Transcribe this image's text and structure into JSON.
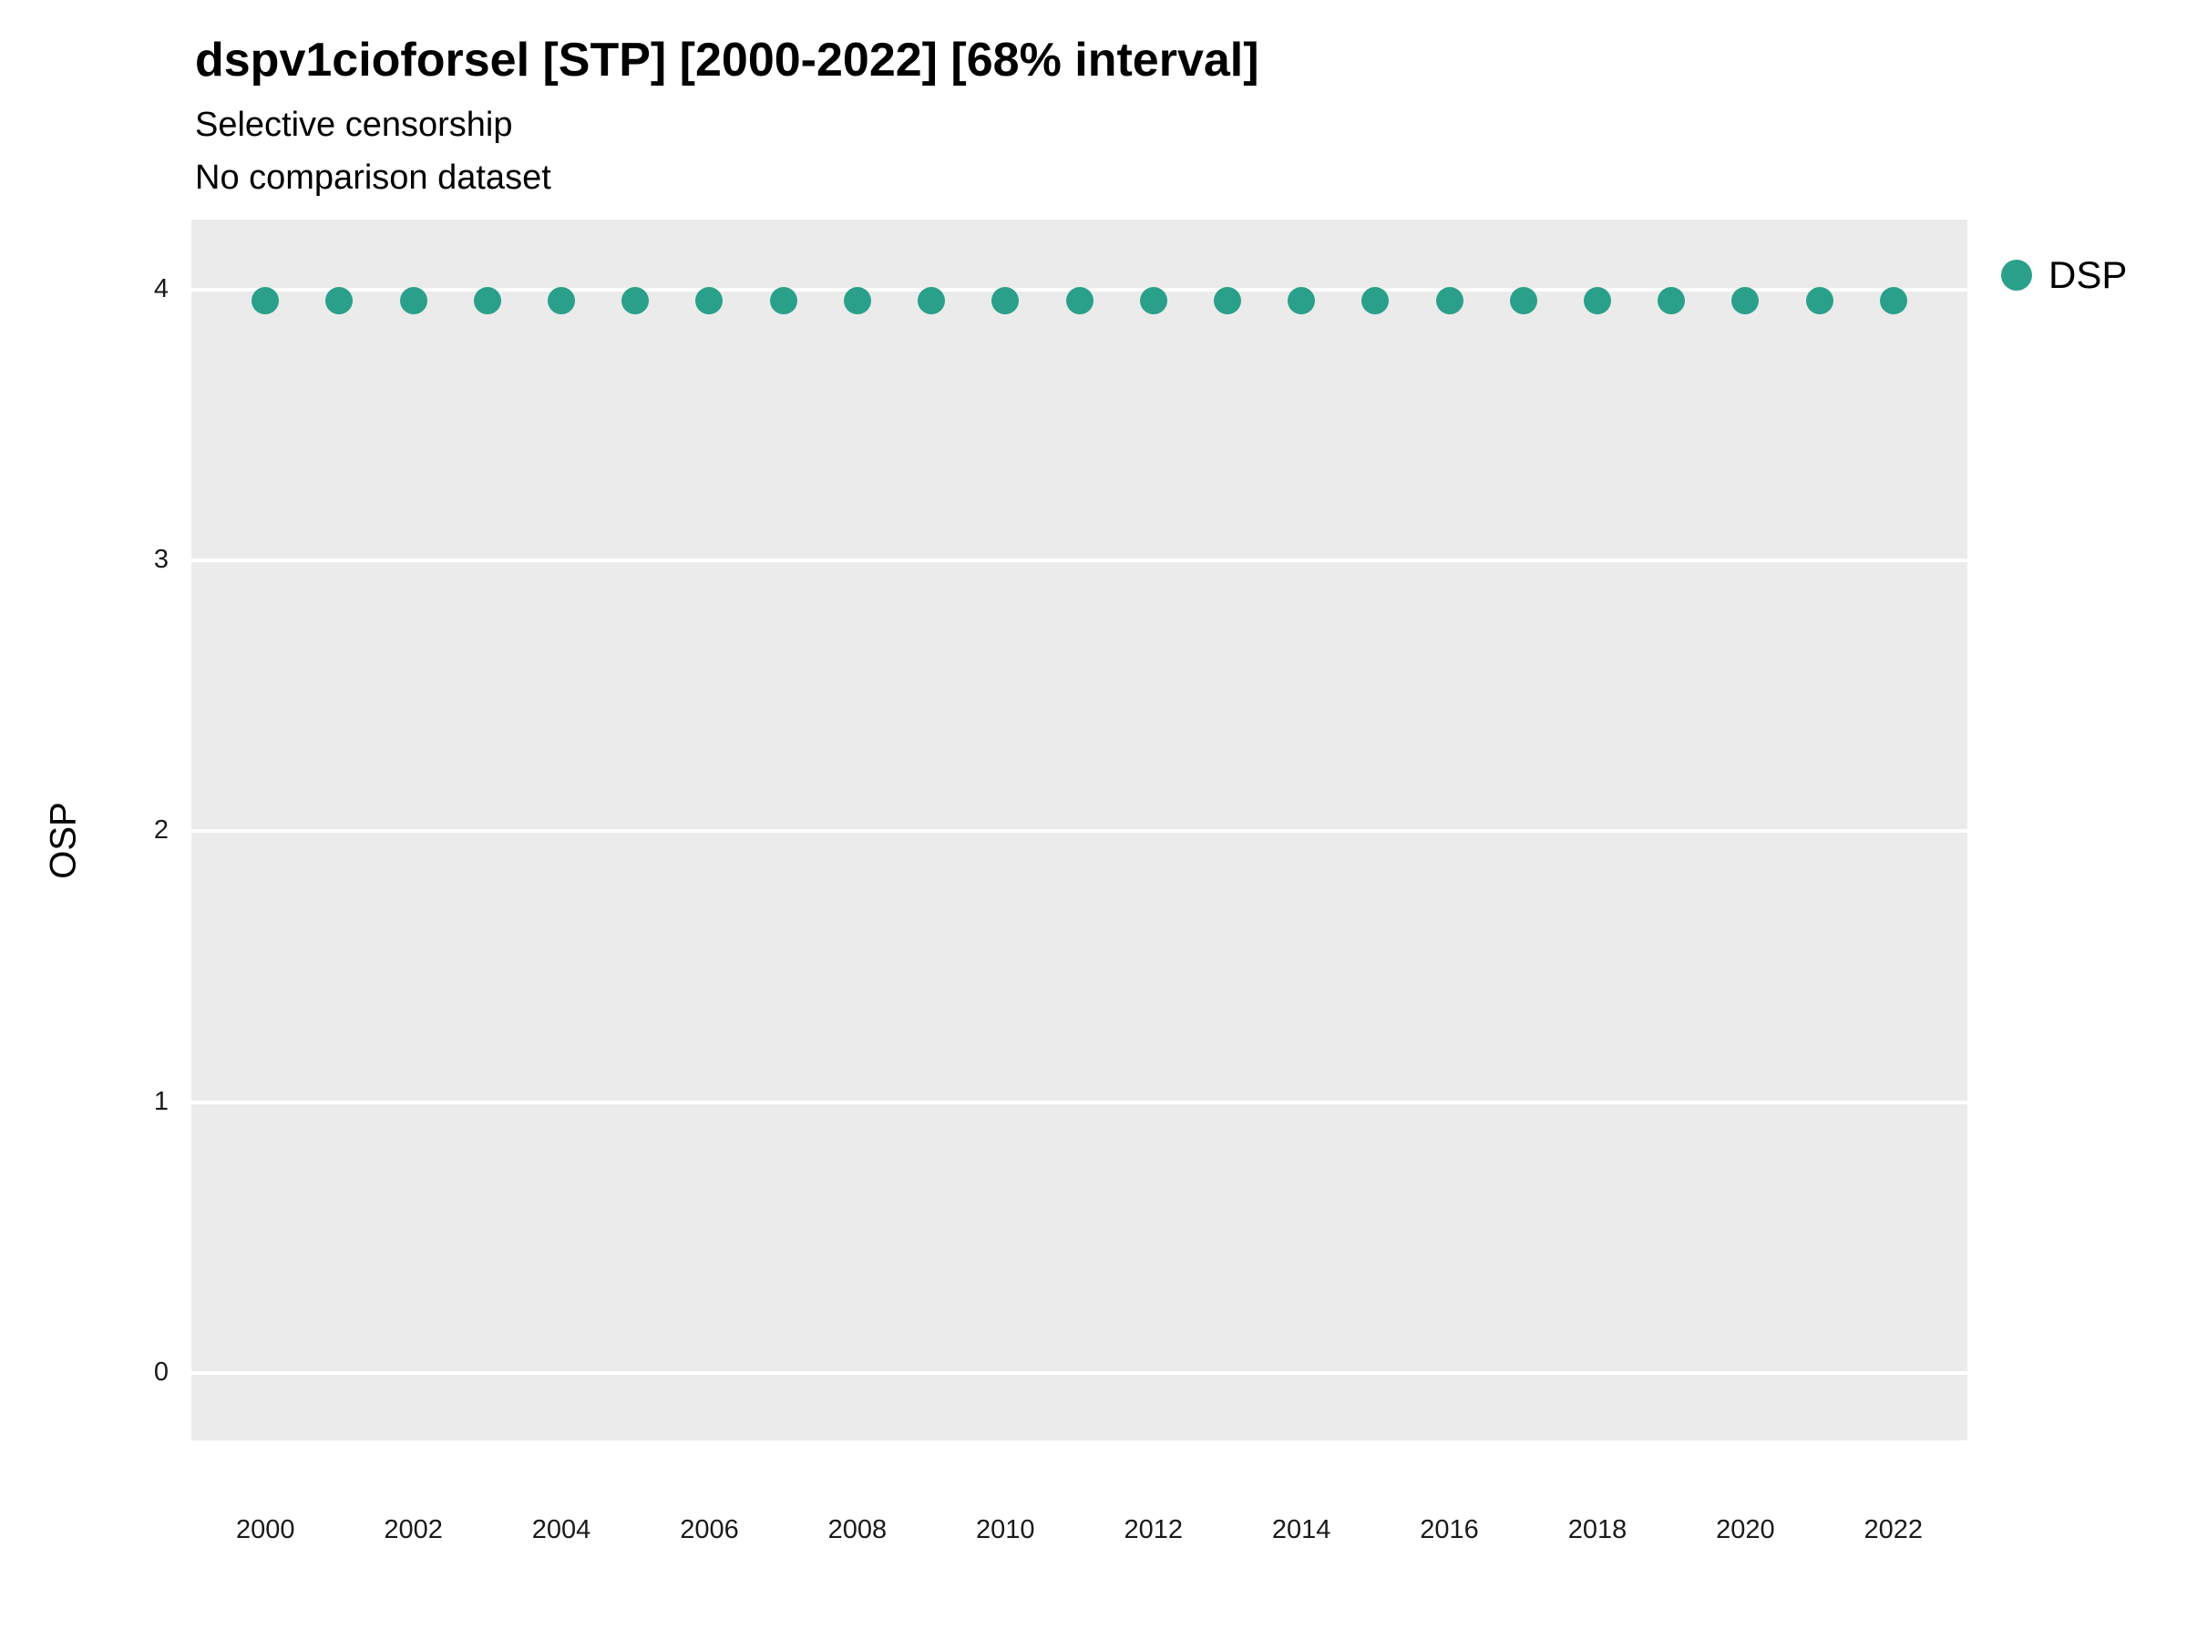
{
  "title": "dspv1cioforsel [STP] [2000-2022] [68% interval]",
  "subtitle_line1": "Selective censorship",
  "subtitle_line2": "No comparison dataset",
  "y_axis_title": "OSP",
  "legend": {
    "label": "DSP"
  },
  "chart_data": {
    "type": "scatter",
    "title": "dspv1cioforsel [STP] [2000-2022] [68% interval]",
    "subtitle": "Selective censorship / No comparison dataset",
    "xlabel": "",
    "ylabel": "OSP",
    "xlim": [
      1999,
      2023
    ],
    "ylim": [
      -0.25,
      4.26
    ],
    "xticks": [
      2000,
      2002,
      2004,
      2006,
      2008,
      2010,
      2012,
      2014,
      2016,
      2018,
      2020,
      2022
    ],
    "yticks": [
      0,
      1,
      2,
      3,
      4
    ],
    "grid": "horizontal-major-white",
    "panel_background": "#EBEBEB",
    "grid_color": "#FFFFFF",
    "point_color": "#2AA08A",
    "legend_position": "right",
    "series": [
      {
        "name": "DSP",
        "x": [
          2000,
          2001,
          2002,
          2003,
          2004,
          2005,
          2006,
          2007,
          2008,
          2009,
          2010,
          2011,
          2012,
          2013,
          2014,
          2015,
          2016,
          2017,
          2018,
          2019,
          2020,
          2021,
          2022
        ],
        "y": [
          3.96,
          3.96,
          3.96,
          3.96,
          3.96,
          3.96,
          3.96,
          3.96,
          3.96,
          3.96,
          3.96,
          3.96,
          3.96,
          3.96,
          3.96,
          3.96,
          3.96,
          3.96,
          3.96,
          3.96,
          3.96,
          3.96,
          3.96
        ]
      }
    ]
  }
}
